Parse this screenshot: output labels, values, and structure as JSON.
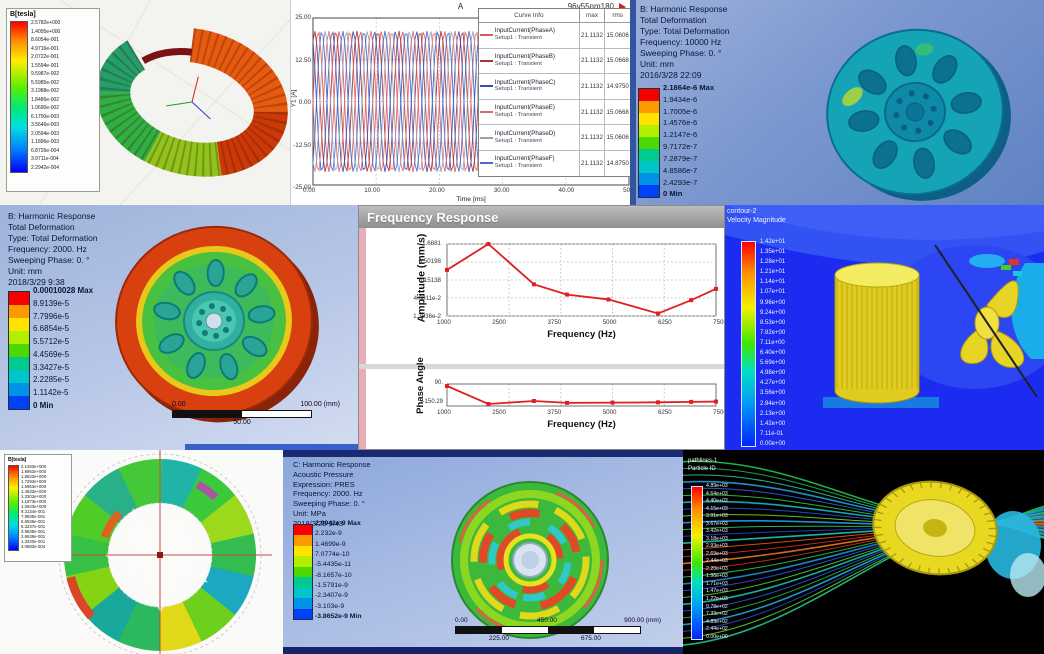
{
  "colors": {
    "ansys9": [
      "#f80000",
      "#fc9a00",
      "#ffe200",
      "#b2ee00",
      "#4cd800",
      "#00ca8e",
      "#00c6ca",
      "#0092e6",
      "#0041f8"
    ],
    "phase_lines": [
      "#d85c5c",
      "#a83434",
      "#3850b8",
      "#e06868",
      "#98a0b0",
      "#4868d0"
    ],
    "ring_palette": [
      "#20b4a8",
      "#3cc83c",
      "#9cd81c",
      "#34bc50",
      "#1ca8c0",
      "#6cd01c",
      "#e0d818",
      "#2cb85c",
      "#18a89c",
      "#84d414",
      "#38c044",
      "#50cc28",
      "#28b088",
      "#44c838"
    ],
    "stream_colors": [
      "#22c24a",
      "#1fae5a",
      "#27c8a0",
      "#1f9fd8",
      "#2b62e8",
      "#33c832",
      "#18b8c8",
      "#2850d8",
      "#74d420",
      "#1ea0e0",
      "#2cc85c",
      "#2244d0",
      "#1fc8b4",
      "#e05818",
      "#d82818",
      "#e87818",
      "#c83018",
      "#28c048",
      "#1890d0",
      "#3050e0",
      "#50cc28",
      "#18c0a8",
      "#2858e8",
      "#30b838",
      "#1fa8d8",
      "#2a48c8",
      "#60d020",
      "#1ec890"
    ]
  },
  "panels": {
    "maxwell_coil": {
      "legend_title": "B[tesla]",
      "values": [
        "2.5782e+000",
        "1.4095e+000",
        "8.6054e-001",
        "4.9716e-001",
        "2.0722e-001",
        "1.5594e-001",
        "9.5987e-002",
        "5.5985e-002",
        "3.1988e-002",
        "1.8486e-002",
        "1.0690e-002",
        "6.1700e-003",
        "3.5646e-003",
        "2.0594e-003",
        "1.1896e-003",
        "6.8726e-004",
        "3.9711e-004",
        "2.2942e-004"
      ]
    },
    "harmonic_tr": {
      "header_lines": [
        "B: Harmonic Response",
        "Total Deformation",
        "Type: Total Deformation",
        "Frequency: 10000 Hz",
        "Sweeping Phase: 0. °",
        "Unit: mm",
        "2016/3/28 22:09"
      ],
      "bar_values": [
        "2.1864e-6 Max",
        "1.9434e-6",
        "1.7005e-6",
        "1.4576e-6",
        "1.2147e-6",
        "9.7172e-7",
        "7.2879e-7",
        "4.8586e-7",
        "2.4293e-7",
        "0 Min"
      ]
    },
    "harmonic_ml": {
      "header_lines": [
        "B: Harmonic Response",
        "Total Deformation",
        "Type: Total Deformation",
        "Frequency: 2000. Hz",
        "Sweeping Phase: 0. °",
        "Unit: mm",
        "2018/3/29 9:38"
      ],
      "bar_values": [
        "0.00010028 Max",
        "8.9139e-5",
        "7.7996e-5",
        "6.6854e-5",
        "5.5712e-5",
        "4.4569e-5",
        "3.3427e-5",
        "2.2285e-5",
        "1.1142e-5",
        "0 Min"
      ],
      "scale": {
        "left": "0.00",
        "right": "100.00 (mm)",
        "mid": "50.00"
      }
    },
    "freq_response": {
      "window_title": "Frequency Response",
      "amp_ylabel": "Amplitude (mm/s)",
      "phase_ylabel": "Phase Angle",
      "xlabel_amp": "Frequency (Hz)",
      "xlabel_phase": "Frequency (Hz)"
    },
    "cfd_contour": {
      "header_lines": [
        "contour-2",
        "Velocity Magnitude"
      ],
      "values": [
        "1.42e+01",
        "1.35e+01",
        "1.28e+01",
        "1.21e+01",
        "1.14e+01",
        "1.07e+01",
        "9.96e+00",
        "9.24e+00",
        "8.53e+00",
        "7.82e+00",
        "7.11e+00",
        "6.40e+00",
        "5.69e+00",
        "4.98e+00",
        "4.27e+00",
        "3.56e+00",
        "2.84e+00",
        "2.13e+00",
        "1.42e+00",
        "7.11e-01",
        "0.00e+00"
      ]
    },
    "maxwell_ring": {
      "legend_title": "B[tesla]",
      "values": [
        "2.1283e+000",
        "1.9953e+000",
        "1.8623e+000",
        "1.7293e+000",
        "1.5963e+000",
        "1.4633e+000",
        "1.3303e+000",
        "1.1973e+000",
        "1.0643e+000",
        "9.3134e-001",
        "7.9835e-001",
        "6.6536e-001",
        "5.3237e-001",
        "3.9938e-001",
        "2.6639e-001",
        "1.3340e-001",
        "4.0883e-004"
      ]
    },
    "harmonic_bm": {
      "header_lines": [
        "C: Harmonic Response",
        "Acoustic Pressure",
        "Expression: PRES",
        "Frequency: 2000. Hz",
        "Sweeping Phase: 0. °",
        "Unit: MPa",
        "2018/3/29 9:43"
      ],
      "bar_values": [
        "2.9942e-9 Max",
        "2.232e-9",
        "1.4699e-9",
        "7.0774e-10",
        "-5.4435e-11",
        "-8.1657e-10",
        "-1.5791e-9",
        "-2.3407e-9",
        "-3.103e-9",
        "-3.8652e-9 Min"
      ],
      "scale": {
        "row1_left": "0.00",
        "row1_mid": "450.00",
        "row1_right": "900.00 (mm)",
        "row2_left": "225.00",
        "row2_right": "675.00"
      }
    },
    "pathlines": {
      "header_lines": [
        "pathlines-1",
        "Particle ID"
      ],
      "values": [
        "4.89e+03",
        "4.64e+03",
        "4.40e+03",
        "4.15e+03",
        "3.91e+03",
        "3.67e+03",
        "3.42e+03",
        "3.18e+03",
        "2.93e+03",
        "2.69e+03",
        "2.44e+03",
        "2.20e+03",
        "1.96e+03",
        "1.71e+03",
        "1.47e+03",
        "1.22e+03",
        "9.78e+02",
        "7.33e+02",
        "4.89e+02",
        "2.44e+02",
        "0.00e+00"
      ]
    }
  },
  "chart_data": [
    {
      "type": "line",
      "title": "A",
      "corner_label": "96v55nm180",
      "xlabel": "Time [ms]",
      "ylabel": "Y1 [A]",
      "xlim": [
        0,
        50
      ],
      "ylim": [
        -25,
        25
      ],
      "x_ticks": [
        "0.00",
        "10.00",
        "20.00",
        "30.00",
        "40.00",
        "50.00"
      ],
      "y_ticks": [
        "25.00",
        "12.50",
        "0.00",
        "-12.50",
        "-25.00"
      ],
      "waveform": {
        "shape": "sine",
        "amplitude": 21.1132,
        "period_ms": 3.333,
        "n_phases": 6
      },
      "legend": {
        "headers": [
          "Curve Info",
          "max",
          "rms"
        ],
        "rows": [
          {
            "name": "InputCurrent(PhaseA)",
            "setup": "Setup1 : Transient",
            "max": "21.1132",
            "rms": "15.0606",
            "color": "#d85c5c"
          },
          {
            "name": "InputCurrent(PhaseB)",
            "setup": "Setup1 : Transient",
            "max": "21.1132",
            "rms": "15.0668",
            "color": "#a83434"
          },
          {
            "name": "InputCurrent(PhaseC)",
            "setup": "Setup1 : Transient",
            "max": "21.1132",
            "rms": "14.9750",
            "color": "#3850b8"
          },
          {
            "name": "InputCurrent(PhaseE)",
            "setup": "Setup1 : Transient",
            "max": "21.1132",
            "rms": "15.0668",
            "color": "#e06868"
          },
          {
            "name": "InputCurrent(PhaseD)",
            "setup": "Setup1 : Transient",
            "max": "21.1132",
            "rms": "15.0606",
            "color": "#98a0b0"
          },
          {
            "name": "InputCurrent(PhaseF)",
            "setup": "Setup1 : Transient",
            "max": "21.1132",
            "rms": "14.8750",
            "color": "#4868d0"
          }
        ]
      }
    },
    {
      "type": "line",
      "title": "Frequency Response — Amplitude",
      "xlabel": "Frequency (Hz)",
      "ylabel": "Amplitude (mm/s)",
      "y_scale": "log",
      "x": [
        1000,
        2000,
        3100,
        3900,
        4900,
        6100,
        6900,
        7500
      ],
      "y": [
        0.3,
        1.6881,
        0.115,
        0.058,
        0.042,
        0.0165,
        0.04,
        0.085
      ],
      "x_ticks": [
        "1000",
        "2500",
        "3750",
        "5000",
        "6250",
        "7500"
      ],
      "y_ticks": [
        "1.6881",
        "0.50198",
        "0.15138",
        "4.6011e-2",
        "1.3936e-2"
      ],
      "xlim": [
        1000,
        7500
      ]
    },
    {
      "type": "line",
      "title": "Frequency Response — Phase",
      "xlabel": "Frequency (Hz)",
      "ylabel": "Phase Angle",
      "x": [
        1000,
        2000,
        3100,
        3900,
        5000,
        6100,
        6900,
        7500
      ],
      "y": [
        90,
        -150.29,
        -110,
        -135,
        -132,
        -128,
        -122,
        -118
      ],
      "x_ticks": [
        "1000",
        "2500",
        "3750",
        "5000",
        "6250",
        "7500"
      ],
      "y_ticks": [
        "90.",
        "-150.29"
      ],
      "xlim": [
        1000,
        7500
      ]
    }
  ]
}
